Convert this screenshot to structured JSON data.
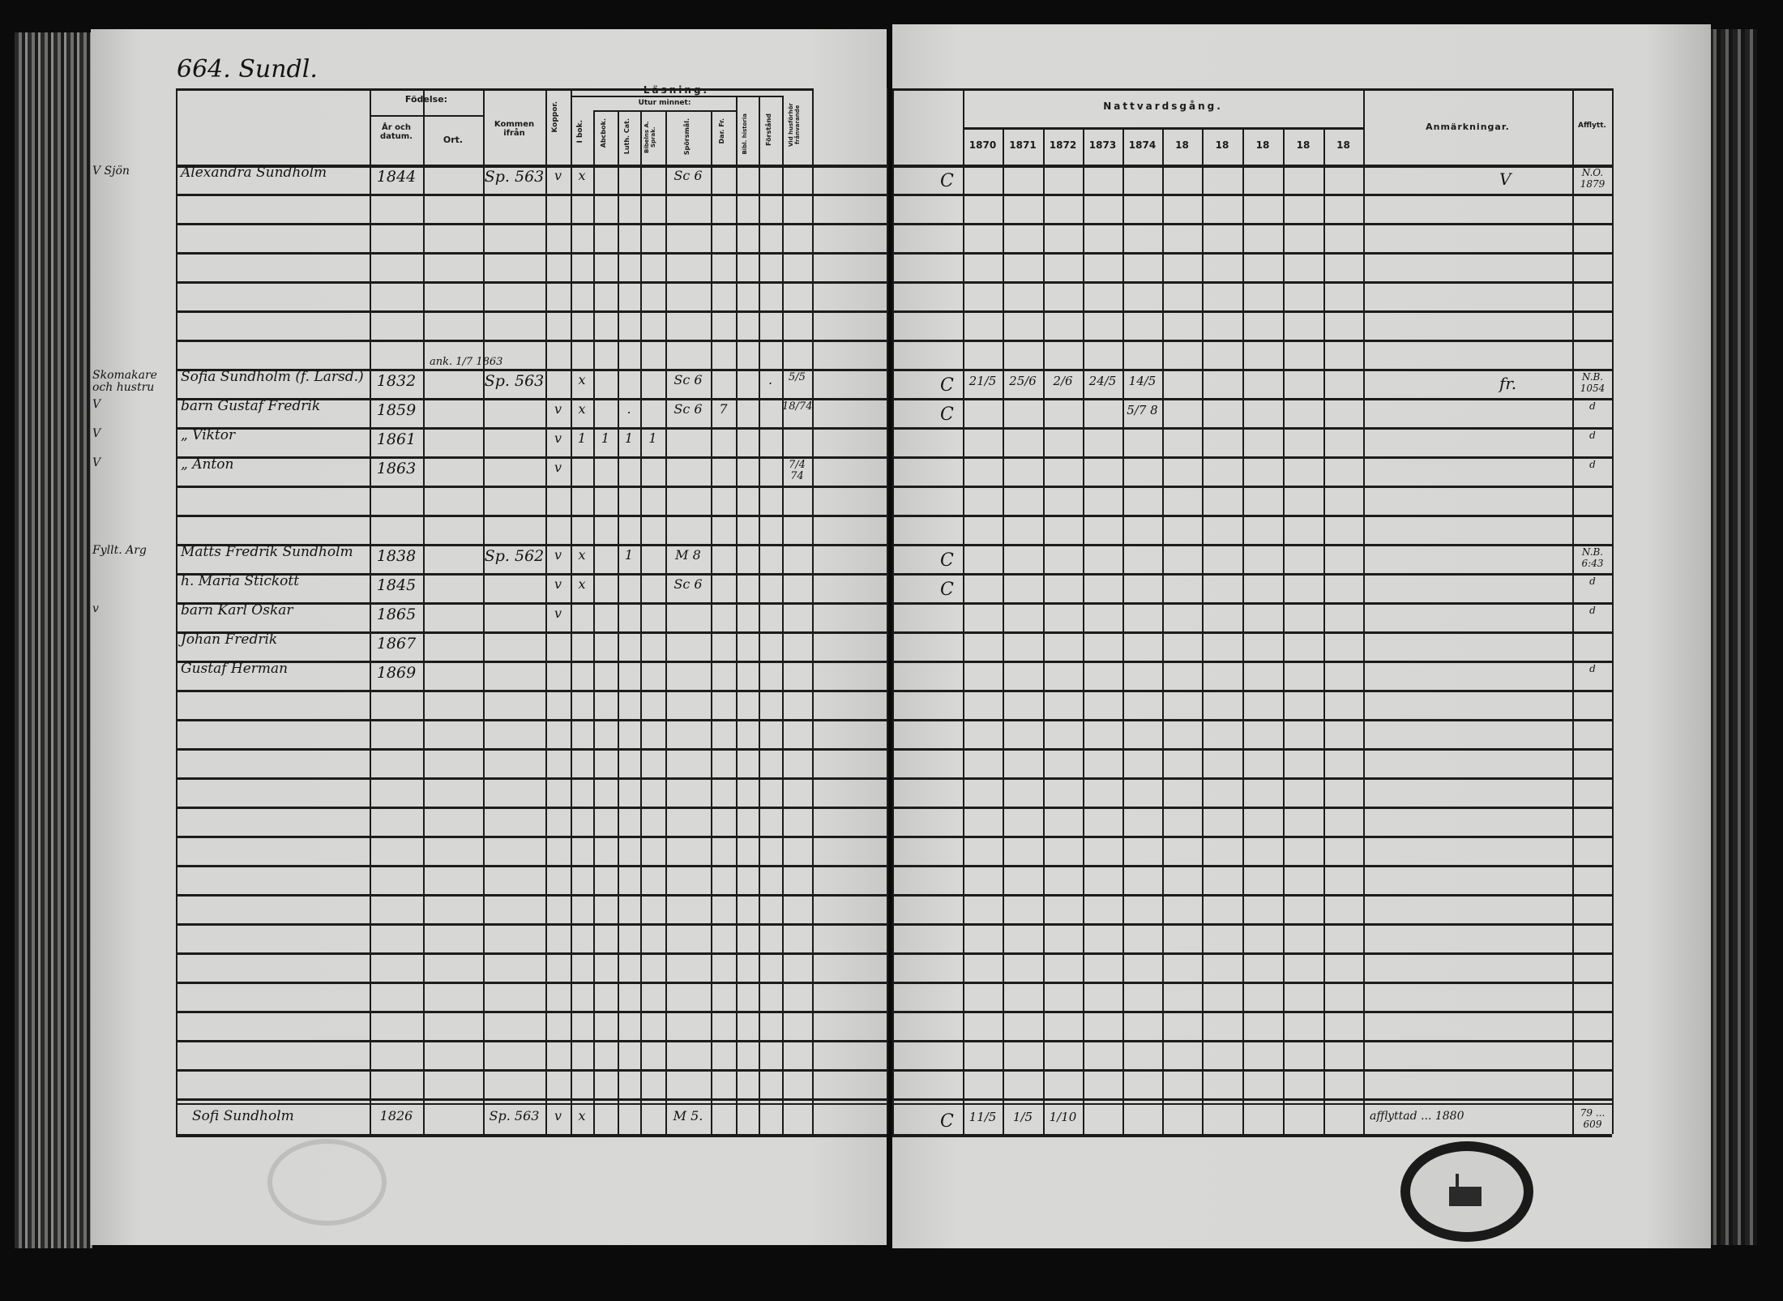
{
  "left_page": {
    "title": "664. Sundl.",
    "header": {
      "fodelse": "Födelse:",
      "ar_datum": "År och datum.",
      "ort": "Ort.",
      "kommen": "Kommen ifrån",
      "koppor": "Koppor.",
      "lasning": "Läsning.",
      "utur_minnet": "Utur minnet:",
      "i_bok": "I bok.",
      "abc_bok": "Abcbok.",
      "luth_cat": "Luth. Cat.",
      "bib_sprak": "Bibelns A. Sprak.",
      "sporsmal": "Spörsmål.",
      "dar_fr": "Dar. Fr.",
      "bibl_hist": "Bibl. historia",
      "forstand": "Förstånd",
      "val": "Vid husförhör frånvarande"
    },
    "entries": [
      {
        "row": 0,
        "margin": "V Sjön",
        "cells": [
          "Alexandra Sundholm",
          "1844",
          "",
          "Sp. 563",
          "v",
          "x",
          "",
          "",
          "",
          "Sc 6",
          "",
          "",
          "",
          ""
        ]
      },
      {
        "row": 7,
        "margin": "Skomakare och hustru",
        "note": "ank. 1/7 1863",
        "cells": [
          "Sofia Sundholm (f. Larsd.)",
          "1832",
          "",
          "Sp. 563",
          "",
          "x",
          "",
          "",
          "",
          "Sc 6",
          "",
          "",
          ".",
          "5/5"
        ]
      },
      {
        "row": 8,
        "margin": "V",
        "cells": [
          "barn Gustaf Fredrik",
          "1859",
          "",
          "",
          "v",
          "x",
          "",
          ".",
          "",
          "Sc 6",
          "7",
          "",
          "",
          "18/74"
        ]
      },
      {
        "row": 9,
        "margin": "V",
        "cells": [
          "„ Viktor",
          "1861",
          "",
          "",
          "v",
          "1",
          "1",
          "1",
          "1",
          "",
          "",
          "",
          "",
          ""
        ]
      },
      {
        "row": 10,
        "margin": "V",
        "cells": [
          "„ Anton",
          "1863",
          "",
          "",
          "v",
          "",
          "",
          "",
          "",
          "",
          "",
          "",
          "",
          "7/4 74"
        ]
      },
      {
        "row": 13,
        "margin": "Fyllt. Arg",
        "cells": [
          "Matts Fredrik Sundholm",
          "1838",
          "",
          "Sp. 562",
          "v",
          "x",
          "",
          "1",
          "",
          "M 8",
          "",
          "",
          "",
          ""
        ]
      },
      {
        "row": 14,
        "margin": "",
        "cells": [
          "h. Maria Stickott",
          "1845",
          "",
          "",
          "v",
          "x",
          "",
          "",
          "",
          "Sc 6",
          "",
          "",
          "",
          ""
        ]
      },
      {
        "row": 15,
        "margin": "v",
        "cells": [
          "barn Karl Oskar",
          "1865",
          "",
          "",
          "v",
          "",
          "",
          "",
          "",
          "",
          "",
          "",
          "",
          ""
        ]
      },
      {
        "row": 16,
        "margin": "",
        "cells": [
          "Johan Fredrik",
          "1867",
          "",
          "",
          "",
          "",
          "",
          "",
          "",
          "",
          "",
          "",
          "",
          ""
        ]
      },
      {
        "row": 17,
        "margin": "",
        "cells": [
          "Gustaf Herman",
          "1869",
          "",
          "",
          "",
          "",
          "",
          "",
          "",
          "",
          "",
          "",
          "",
          ""
        ]
      }
    ],
    "last_entry": {
      "cells": [
        "Sofi Sundholm",
        "1826",
        "",
        "Sp. 563",
        "v",
        "x",
        "",
        "",
        "",
        "M 5.",
        "",
        "",
        "",
        ""
      ]
    }
  },
  "right_page": {
    "header": {
      "nattvardsgang": "Nattvardsgång.",
      "years": [
        "1870",
        "1871",
        "1872",
        "1873",
        "1874",
        "18",
        "18",
        "18",
        "18",
        "18"
      ],
      "anmarkningar": "Anmärkningar.",
      "afflytt": "Afflytt."
    },
    "entries": [
      {
        "row": 0,
        "mark": "C",
        "cells": [
          "",
          "",
          "",
          "",
          "",
          "",
          "",
          "",
          "",
          "",
          ""
        ],
        "anm": "V",
        "afflytt": "N.Ö. 1879"
      },
      {
        "row": 7,
        "mark": "C",
        "cells": [
          "21/5",
          "25/6",
          "2/6",
          "24/5",
          "14/5",
          "",
          "",
          "",
          "",
          "",
          ""
        ],
        "anm": "fr.",
        "afflytt": "N.B. 1054"
      },
      {
        "row": 8,
        "mark": "C",
        "cells": [
          "",
          "",
          "",
          "",
          "5/7 8",
          "",
          "",
          "",
          "",
          "",
          ""
        ],
        "anm": "",
        "afflytt": "d"
      },
      {
        "row": 9,
        "mark": "",
        "cells": [
          "",
          "",
          "",
          "",
          "",
          "",
          "",
          "",
          "",
          "",
          ""
        ],
        "anm": "",
        "afflytt": "d"
      },
      {
        "row": 10,
        "mark": "",
        "cells": [
          "",
          "",
          "",
          "",
          "",
          "",
          "",
          "",
          "",
          "",
          ""
        ],
        "anm": "",
        "afflytt": "d"
      },
      {
        "row": 13,
        "mark": "C",
        "cells": [
          "",
          "",
          "",
          "",
          "",
          "",
          "",
          "",
          "",
          "",
          ""
        ],
        "anm": "",
        "afflytt": "N.B. 6:43"
      },
      {
        "row": 14,
        "mark": "C",
        "cells": [
          "",
          "",
          "",
          "",
          "",
          "",
          "",
          "",
          "",
          "",
          ""
        ],
        "anm": "",
        "afflytt": "d"
      },
      {
        "row": 15,
        "mark": "",
        "cells": [
          "",
          "",
          "",
          "",
          "",
          "",
          "",
          "",
          "",
          "",
          ""
        ],
        "anm": "",
        "afflytt": "d"
      },
      {
        "row": 17,
        "mark": "",
        "cells": [
          "",
          "",
          "",
          "",
          "",
          "",
          "",
          "",
          "",
          "",
          ""
        ],
        "anm": "",
        "afflytt": "d"
      }
    ],
    "last_entry": {
      "mark": "C",
      "cells": [
        "11/5",
        "1/5",
        "1/10",
        "",
        "",
        "",
        "",
        "",
        "",
        "",
        ""
      ],
      "anm": "afflyttad ... 1880",
      "afflytt": "79 ... 609"
    }
  },
  "colors": {
    "paper": "#d6d6d4",
    "ink": "#141414",
    "background": "#0b0b0b"
  }
}
